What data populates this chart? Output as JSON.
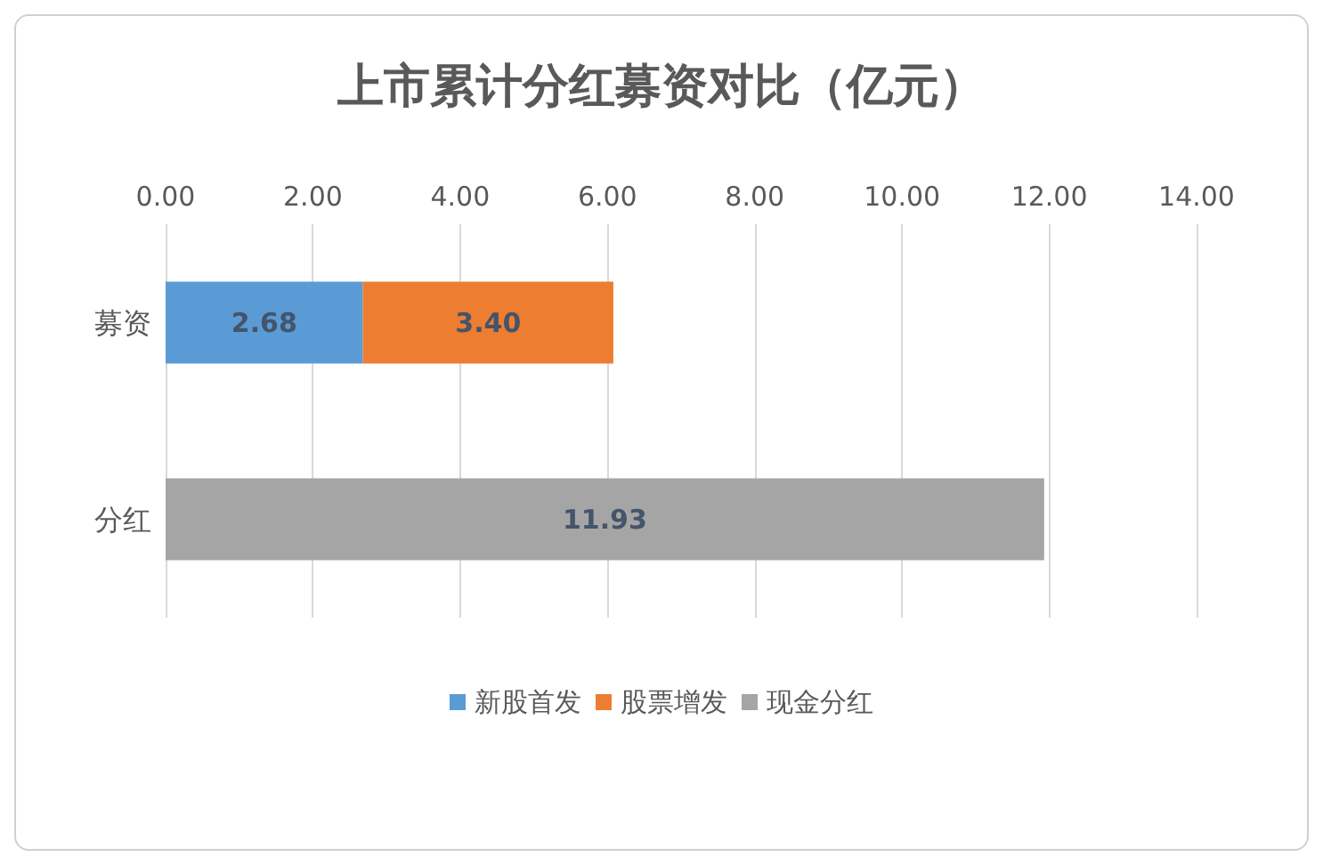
{
  "chart_data": {
    "type": "bar",
    "orientation": "horizontal",
    "stacked": true,
    "title": "上市累计分红募资对比（亿元）",
    "categories": [
      "募资",
      "分红"
    ],
    "series": [
      {
        "name": "新股首发",
        "color": "#5b9bd5",
        "values": [
          2.68,
          null
        ],
        "value_labels": [
          "2.68",
          null
        ]
      },
      {
        "name": "股票增发",
        "color": "#ed7d31",
        "values": [
          3.4,
          null
        ],
        "value_labels": [
          "3.40",
          null
        ]
      },
      {
        "name": "现金分红",
        "color": "#a5a5a5",
        "values": [
          null,
          11.93
        ],
        "value_labels": [
          null,
          "11.93"
        ]
      }
    ],
    "xlim": [
      0,
      14
    ],
    "xticks": [
      {
        "value": 0,
        "label": "0.00"
      },
      {
        "value": 2,
        "label": "2.00"
      },
      {
        "value": 4,
        "label": "4.00"
      },
      {
        "value": 6,
        "label": "6.00"
      },
      {
        "value": 8,
        "label": "8.00"
      },
      {
        "value": 10,
        "label": "10.00"
      },
      {
        "value": 12,
        "label": "12.00"
      },
      {
        "value": 14,
        "label": "14.00"
      }
    ],
    "grid": "x",
    "legend": "bottom"
  }
}
